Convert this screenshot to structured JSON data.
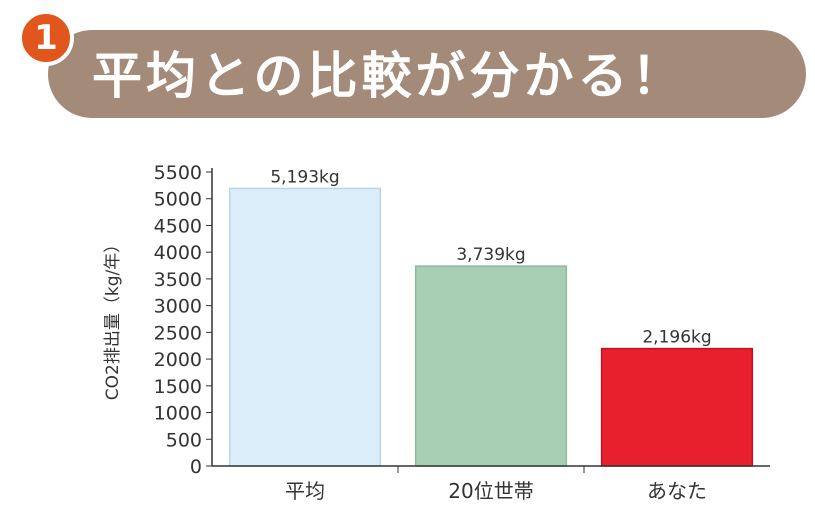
{
  "header": {
    "badge_number": "1",
    "title": "平均との比較が分かる！",
    "banner_color": "#a48a78",
    "badge_color": "#e0561c"
  },
  "chart_data": {
    "type": "bar",
    "title": "",
    "xlabel": "",
    "ylabel": "CO2排出量（kg/年）",
    "categories": [
      "平均",
      "20位世帯",
      "あなた"
    ],
    "values": [
      5193,
      3739,
      2196
    ],
    "data_labels": [
      "5,193kg",
      "3,739kg",
      "2,196kg"
    ],
    "bar_colors": [
      "#dceef9",
      "#a7cfb3",
      "#e8202e"
    ],
    "bar_edge_colors": [
      "#b9d7ea",
      "#8fb89c",
      "#c8101c"
    ],
    "ylim": [
      0,
      5500
    ],
    "yticks": [
      0,
      500,
      1000,
      1500,
      2000,
      2500,
      3000,
      3500,
      4000,
      4500,
      5000,
      5500
    ],
    "grid": false,
    "legend": "none"
  }
}
